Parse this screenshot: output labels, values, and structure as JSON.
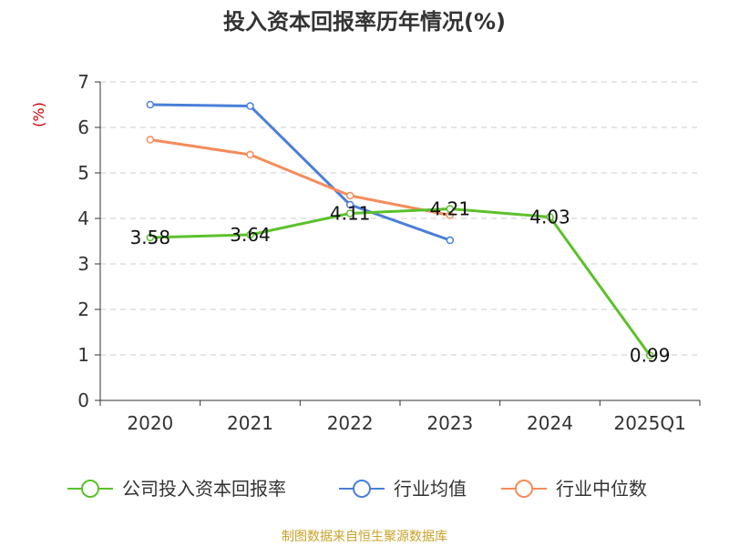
{
  "chart_data": {
    "type": "line",
    "title": "投入资本回报率历年情况(%)",
    "ylabel": "(%)",
    "xlabel": "",
    "categories": [
      "2020",
      "2021",
      "2022",
      "2023",
      "2024",
      "2025Q1"
    ],
    "ylim": [
      0,
      7
    ],
    "yticks": [
      0,
      1,
      2,
      3,
      4,
      5,
      6,
      7
    ],
    "grid": true,
    "legend_position": "bottom",
    "series": [
      {
        "name": "公司投入资本回报率",
        "values": [
          3.58,
          3.64,
          4.11,
          4.21,
          4.03,
          0.99
        ],
        "labels": [
          "3.58",
          "3.64",
          "4.11",
          "4.21",
          "4.03",
          "0.99"
        ],
        "color": "#5cc12c"
      },
      {
        "name": "行业均值",
        "values": [
          6.5,
          6.47,
          4.3,
          3.52,
          null,
          null
        ],
        "color": "#4a7fd9"
      },
      {
        "name": "行业中位数",
        "values": [
          5.73,
          5.4,
          4.5,
          4.07,
          null,
          null
        ],
        "color": "#f58c5a"
      }
    ]
  },
  "footer": {
    "source": "制图数据来自恒生聚源数据库",
    "source_color": "#c9a227"
  },
  "colors": {
    "ylabel": "#cc0000",
    "axis": "#333333",
    "grid": "#cccccc"
  }
}
